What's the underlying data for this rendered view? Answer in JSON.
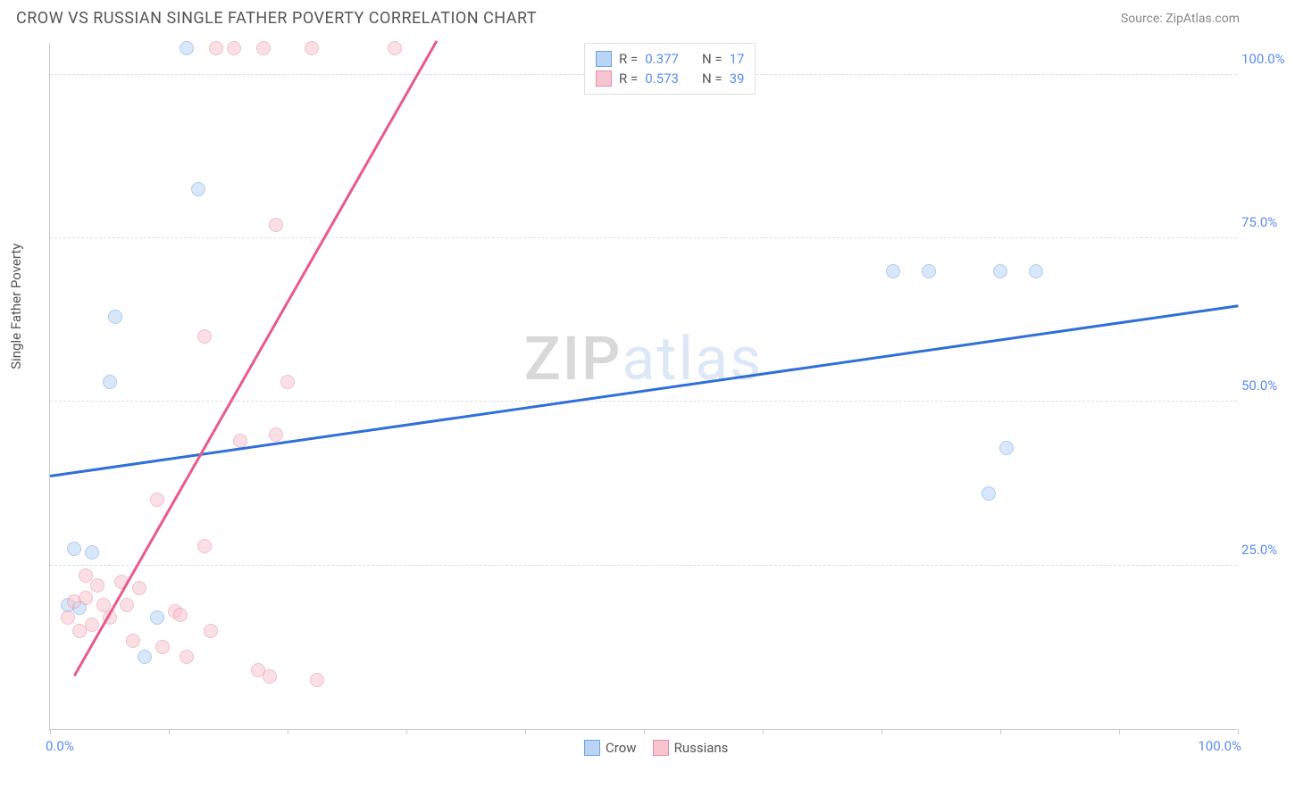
{
  "header": {
    "title": "CROW VS RUSSIAN SINGLE FATHER POVERTY CORRELATION CHART",
    "source_label": "Source:",
    "source_name": "ZipAtlas.com"
  },
  "chart": {
    "type": "scatter",
    "y_axis_title": "Single Father Poverty",
    "xlim": [
      0,
      100
    ],
    "ylim": [
      0,
      105
    ],
    "x_ticks_positions": [
      0,
      10,
      20,
      30,
      40,
      50,
      60,
      70,
      80,
      90,
      100
    ],
    "x_tick_labels": {
      "0": "0.0%",
      "100": "100.0%"
    },
    "y_gridlines": [
      25,
      50,
      75,
      100
    ],
    "y_tick_labels": {
      "25": "25.0%",
      "50": "50.0%",
      "75": "75.0%",
      "100": "100.0%"
    },
    "background_color": "#ffffff",
    "grid_color": "#dddddd",
    "axis_color": "#cccccc",
    "tick_label_color": "#5b8def",
    "tick_label_fontsize": 15,
    "point_radius": 8,
    "point_opacity": 0.55,
    "watermark": "ZIPatlas",
    "series": [
      {
        "name": "Crow",
        "fill_color": "#b9d4f5",
        "stroke_color": "#6fa3e0",
        "trend_color": "#2f6fd6",
        "trend": {
          "x1": 0,
          "y1": 38.5,
          "x2": 100,
          "y2": 64.5
        },
        "points": [
          {
            "x": 11.5,
            "y": 104
          },
          {
            "x": 12.5,
            "y": 82.5
          },
          {
            "x": 5.5,
            "y": 63
          },
          {
            "x": 5,
            "y": 53
          },
          {
            "x": 80.5,
            "y": 43
          },
          {
            "x": 79,
            "y": 36
          },
          {
            "x": 2,
            "y": 27.5
          },
          {
            "x": 3.5,
            "y": 27
          },
          {
            "x": 1.5,
            "y": 19
          },
          {
            "x": 2.5,
            "y": 18.5
          },
          {
            "x": 9,
            "y": 17
          },
          {
            "x": 8,
            "y": 11
          },
          {
            "x": 71,
            "y": 70
          },
          {
            "x": 74,
            "y": 70
          },
          {
            "x": 80,
            "y": 70
          },
          {
            "x": 83,
            "y": 70
          }
        ]
      },
      {
        "name": "Russians",
        "fill_color": "#f6c5d0",
        "stroke_color": "#e88ba3",
        "trend_color": "#e85a8a",
        "trend": {
          "x1": 2,
          "y1": 8,
          "x2": 32.5,
          "y2": 105
        },
        "points": [
          {
            "x": 14,
            "y": 104
          },
          {
            "x": 15.5,
            "y": 104
          },
          {
            "x": 18,
            "y": 104
          },
          {
            "x": 22,
            "y": 104
          },
          {
            "x": 29,
            "y": 104
          },
          {
            "x": 19,
            "y": 77
          },
          {
            "x": 13,
            "y": 60
          },
          {
            "x": 20,
            "y": 53
          },
          {
            "x": 19,
            "y": 45
          },
          {
            "x": 16,
            "y": 44
          },
          {
            "x": 9,
            "y": 35
          },
          {
            "x": 13,
            "y": 28
          },
          {
            "x": 3,
            "y": 23.5
          },
          {
            "x": 4,
            "y": 22
          },
          {
            "x": 6,
            "y": 22.5
          },
          {
            "x": 7.5,
            "y": 21.5
          },
          {
            "x": 2,
            "y": 19.5
          },
          {
            "x": 4.5,
            "y": 19
          },
          {
            "x": 6.5,
            "y": 19
          },
          {
            "x": 5,
            "y": 17
          },
          {
            "x": 3.5,
            "y": 16
          },
          {
            "x": 10.5,
            "y": 18
          },
          {
            "x": 11,
            "y": 17.5
          },
          {
            "x": 13.5,
            "y": 15
          },
          {
            "x": 7,
            "y": 13.5
          },
          {
            "x": 9.5,
            "y": 12.5
          },
          {
            "x": 11.5,
            "y": 11
          },
          {
            "x": 17.5,
            "y": 9
          },
          {
            "x": 18.5,
            "y": 8
          },
          {
            "x": 22.5,
            "y": 7.5
          },
          {
            "x": 2.5,
            "y": 15
          },
          {
            "x": 1.5,
            "y": 17
          },
          {
            "x": 3,
            "y": 20
          }
        ]
      }
    ],
    "legend_top": [
      {
        "series": 0,
        "r_label": "R =",
        "r_value": "0.377",
        "n_label": "N =",
        "n_value": "17"
      },
      {
        "series": 1,
        "r_label": "R =",
        "r_value": "0.573",
        "n_label": "N =",
        "n_value": "39"
      }
    ],
    "legend_bottom": [
      {
        "series": 0,
        "label": "Crow"
      },
      {
        "series": 1,
        "label": "Russians"
      }
    ]
  }
}
